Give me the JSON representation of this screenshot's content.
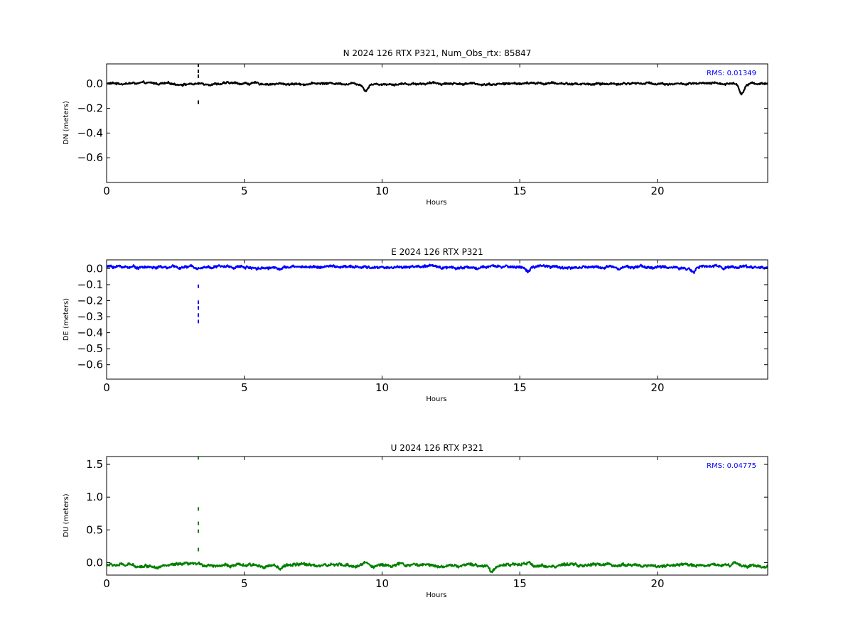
{
  "chart_data": [
    {
      "type": "line",
      "title": "N 2024 126 RTX  P321, Num_Obs_rtx: 85847",
      "xlabel": "Hours",
      "ylabel": "DN (meters)",
      "xlim": [
        0,
        24
      ],
      "ylim": [
        -0.8,
        0.16
      ],
      "xticks": [
        0,
        5,
        10,
        15,
        20
      ],
      "xtick_labels": [
        "0",
        "5",
        "10",
        "15",
        "20"
      ],
      "yticks": [
        0.0,
        -0.2,
        -0.4,
        -0.6
      ],
      "ytick_labels": [
        "0.0",
        "−0.2",
        "−0.4",
        "−0.6"
      ],
      "rms_label": "RMS:  0.01349",
      "rms_color": "#0000ff",
      "series_color": "#000000",
      "baseline": 0.0,
      "noise": 0.008,
      "events": [
        {
          "x": 9.4,
          "y": -0.05
        },
        {
          "x": 23.05,
          "y": -0.08
        }
      ],
      "outliers": [
        {
          "x": 3.33,
          "y": 0.15
        },
        {
          "x": 3.33,
          "y": 0.1
        },
        {
          "x": 3.33,
          "y": 0.06
        },
        {
          "x": 3.33,
          "y": -0.15
        }
      ],
      "grid": false
    },
    {
      "type": "line",
      "title": "E 2024 126 RTX  P321",
      "xlabel": "Hours",
      "ylabel": "DE (meters)",
      "xlim": [
        0,
        24
      ],
      "ylim": [
        -0.69,
        0.055
      ],
      "xticks": [
        0,
        5,
        10,
        15,
        20
      ],
      "xtick_labels": [
        "0",
        "5",
        "10",
        "15",
        "20"
      ],
      "yticks": [
        0.0,
        -0.1,
        -0.2,
        -0.3,
        -0.4,
        -0.5,
        -0.6
      ],
      "ytick_labels": [
        "0.0",
        "−0.1",
        "−0.2",
        "−0.3",
        "−0.4",
        "−0.5",
        "−0.6"
      ],
      "rms_label": "",
      "rms_color": "#0000ff",
      "series_color": "#0000ff",
      "baseline": 0.01,
      "noise": 0.008,
      "events": [
        {
          "x": 15.3,
          "y": -0.03
        },
        {
          "x": 21.3,
          "y": -0.03
        }
      ],
      "outliers": [
        {
          "x": 3.33,
          "y": -0.11
        },
        {
          "x": 3.33,
          "y": -0.21
        },
        {
          "x": 3.33,
          "y": -0.245
        },
        {
          "x": 3.33,
          "y": -0.29
        },
        {
          "x": 3.33,
          "y": -0.33
        }
      ],
      "grid": false
    },
    {
      "type": "line",
      "title": "U 2024 126 RTX  P321",
      "xlabel": "Hours",
      "ylabel": "DU (meters)",
      "xlim": [
        0,
        24
      ],
      "ylim": [
        -0.19,
        1.62
      ],
      "xticks": [
        0,
        5,
        10,
        15,
        20
      ],
      "xtick_labels": [
        "0",
        "5",
        "10",
        "15",
        "20"
      ],
      "yticks": [
        1.5,
        1.0,
        0.5,
        0.0
      ],
      "ytick_labels": [
        "1.5",
        "1.0",
        "0.5",
        "0.0"
      ],
      "rms_label": "RMS:  0.04775",
      "rms_color": "#0000ff",
      "series_color": "#008000",
      "baseline": -0.04,
      "noise": 0.022,
      "events": [
        {
          "x": 6.3,
          "y": -0.08
        },
        {
          "x": 9.4,
          "y": 0.05
        },
        {
          "x": 14.0,
          "y": -0.1
        },
        {
          "x": 15.3,
          "y": 0.03
        },
        {
          "x": 22.8,
          "y": 0.05
        }
      ],
      "outliers": [
        {
          "x": 3.33,
          "y": 1.6
        },
        {
          "x": 3.33,
          "y": 0.82
        },
        {
          "x": 3.33,
          "y": 0.6
        },
        {
          "x": 3.33,
          "y": 0.48
        },
        {
          "x": 3.33,
          "y": 0.2
        }
      ],
      "grid": false
    }
  ]
}
